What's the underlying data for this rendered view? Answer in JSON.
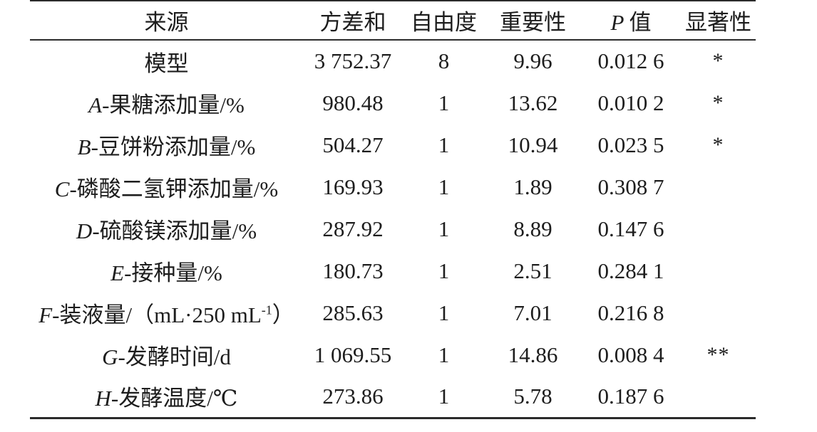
{
  "table": {
    "colors": {
      "background": "#ffffff",
      "text": "#1d1d1d",
      "rule": "#2b2b2b"
    },
    "header": {
      "source": "来源",
      "sum_of_squares": "方差和",
      "df": "自由度",
      "importance": "重要性",
      "p_italic": "P",
      "p_rest": "值",
      "significance": "显著性"
    },
    "rows": [
      {
        "source_prefix": "",
        "source_rest": "模型",
        "source_sup": "",
        "source_post": "",
        "sum_of_squares": "3 752.37",
        "df": "8",
        "importance": "9.96",
        "p_value": "0.012 6",
        "significance": "*"
      },
      {
        "source_prefix": "A",
        "source_rest": "-果糖添加量/%",
        "source_sup": "",
        "source_post": "",
        "sum_of_squares": "980.48",
        "df": "1",
        "importance": "13.62",
        "p_value": "0.010 2",
        "significance": "*"
      },
      {
        "source_prefix": "B",
        "source_rest": "-豆饼粉添加量/%",
        "source_sup": "",
        "source_post": "",
        "sum_of_squares": "504.27",
        "df": "1",
        "importance": "10.94",
        "p_value": "0.023 5",
        "significance": "*"
      },
      {
        "source_prefix": "C",
        "source_rest": "-磷酸二氢钾添加量/%",
        "source_sup": "",
        "source_post": "",
        "sum_of_squares": "169.93",
        "df": "1",
        "importance": "1.89",
        "p_value": "0.308 7",
        "significance": ""
      },
      {
        "source_prefix": "D",
        "source_rest": "-硫酸镁添加量/%",
        "source_sup": "",
        "source_post": "",
        "sum_of_squares": "287.92",
        "df": "1",
        "importance": "8.89",
        "p_value": "0.147 6",
        "significance": ""
      },
      {
        "source_prefix": "E",
        "source_rest": "-接种量/%",
        "source_sup": "",
        "source_post": "",
        "sum_of_squares": "180.73",
        "df": "1",
        "importance": "2.51",
        "p_value": "0.284 1",
        "significance": ""
      },
      {
        "source_prefix": "F",
        "source_rest": "-装液量/（mL·250 mL",
        "source_sup": "-1",
        "source_post": "）",
        "sum_of_squares": "285.63",
        "df": "1",
        "importance": "7.01",
        "p_value": "0.216 8",
        "significance": ""
      },
      {
        "source_prefix": "G",
        "source_rest": "-发酵时间/d",
        "source_sup": "",
        "source_post": "",
        "sum_of_squares": "1 069.55",
        "df": "1",
        "importance": "14.86",
        "p_value": "0.008 4",
        "significance": "**"
      },
      {
        "source_prefix": "H",
        "source_rest": "-发酵温度/℃",
        "source_sup": "",
        "source_post": "",
        "sum_of_squares": "273.86",
        "df": "1",
        "importance": "5.78",
        "p_value": "0.187 6",
        "significance": ""
      }
    ]
  }
}
